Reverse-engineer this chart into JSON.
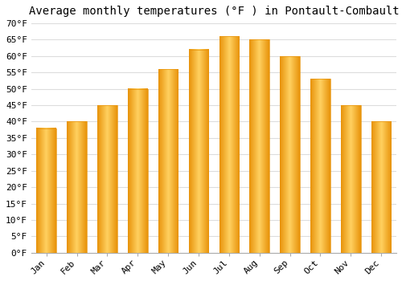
{
  "title": "Average monthly temperatures (°F ) in Pontault-Combault",
  "months": [
    "Jan",
    "Feb",
    "Mar",
    "Apr",
    "May",
    "Jun",
    "Jul",
    "Aug",
    "Sep",
    "Oct",
    "Nov",
    "Dec"
  ],
  "values": [
    38,
    40,
    45,
    50,
    56,
    62,
    66,
    65,
    60,
    53,
    45,
    40
  ],
  "bar_color_center": "#FFD060",
  "bar_color_edge": "#E8930A",
  "ylim": [
    0,
    70
  ],
  "yticks": [
    0,
    5,
    10,
    15,
    20,
    25,
    30,
    35,
    40,
    45,
    50,
    55,
    60,
    65,
    70
  ],
  "ylabel_suffix": "°F",
  "bg_color": "#FFFFFF",
  "grid_color": "#DDDDDD",
  "title_fontsize": 10,
  "tick_fontsize": 8,
  "font_family": "monospace",
  "bar_width": 0.65
}
